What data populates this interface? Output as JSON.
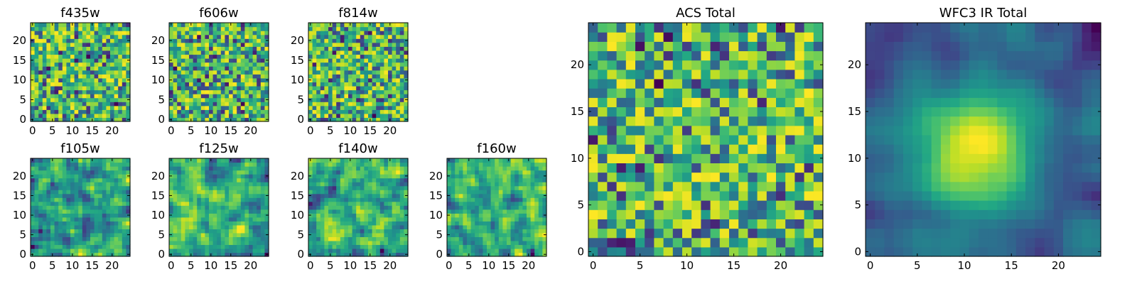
{
  "chart_data": [
    {
      "type": "heatmap",
      "title": "f435w",
      "colormap": "viridis",
      "xlim": [
        0,
        24
      ],
      "ylim": [
        0,
        24
      ],
      "xticks": [
        0,
        5,
        10,
        15,
        20
      ],
      "yticks": [
        0,
        5,
        10,
        15,
        20
      ],
      "grid": false,
      "pattern": "noise",
      "seed": 11
    },
    {
      "type": "heatmap",
      "title": "f606w",
      "colormap": "viridis",
      "xlim": [
        0,
        24
      ],
      "ylim": [
        0,
        24
      ],
      "xticks": [
        0,
        5,
        10,
        15,
        20
      ],
      "yticks": [
        0,
        5,
        10,
        15,
        20
      ],
      "grid": false,
      "pattern": "noise",
      "seed": 23
    },
    {
      "type": "heatmap",
      "title": "f814w",
      "colormap": "viridis",
      "xlim": [
        0,
        24
      ],
      "ylim": [
        0,
        24
      ],
      "xticks": [
        0,
        5,
        10,
        15,
        20
      ],
      "yticks": [
        0,
        5,
        10,
        15,
        20
      ],
      "grid": false,
      "pattern": "noise",
      "seed": 37
    },
    {
      "type": "heatmap",
      "title": "f105w",
      "colormap": "viridis",
      "xlim": [
        0,
        24
      ],
      "ylim": [
        0,
        24
      ],
      "xticks": [
        0,
        5,
        10,
        15,
        20
      ],
      "yticks": [
        0,
        5,
        10,
        15,
        20
      ],
      "grid": false,
      "pattern": "smooth",
      "seed": 41
    },
    {
      "type": "heatmap",
      "title": "f125w",
      "colormap": "viridis",
      "xlim": [
        0,
        24
      ],
      "ylim": [
        0,
        24
      ],
      "xticks": [
        0,
        5,
        10,
        15,
        20
      ],
      "yticks": [
        0,
        5,
        10,
        15,
        20
      ],
      "grid": false,
      "pattern": "smooth",
      "seed": 53
    },
    {
      "type": "heatmap",
      "title": "f140w",
      "colormap": "viridis",
      "xlim": [
        0,
        24
      ],
      "ylim": [
        0,
        24
      ],
      "xticks": [
        0,
        5,
        10,
        15,
        20
      ],
      "yticks": [
        0,
        5,
        10,
        15,
        20
      ],
      "grid": false,
      "pattern": "smooth",
      "seed": 67
    },
    {
      "type": "heatmap",
      "title": "f160w",
      "colormap": "viridis",
      "xlim": [
        0,
        24
      ],
      "ylim": [
        0,
        24
      ],
      "xticks": [
        0,
        5,
        10,
        15,
        20
      ],
      "yticks": [
        0,
        5,
        10,
        15,
        20
      ],
      "grid": false,
      "pattern": "smooth",
      "seed": 79
    },
    {
      "type": "heatmap",
      "title": "ACS Total",
      "colormap": "viridis",
      "xlim": [
        0,
        24
      ],
      "ylim": [
        0,
        24
      ],
      "xticks": [
        0,
        5,
        10,
        15,
        20
      ],
      "yticks": [
        0,
        5,
        10,
        15,
        20
      ],
      "grid": false,
      "pattern": "noise",
      "seed": 97
    },
    {
      "type": "heatmap",
      "title": "WFC3 IR Total",
      "colormap": "viridis",
      "xlim": [
        0,
        24
      ],
      "ylim": [
        0,
        24
      ],
      "xticks": [
        0,
        5,
        10,
        15,
        20
      ],
      "yticks": [
        0,
        5,
        10,
        15,
        20
      ],
      "grid": false,
      "pattern": "blob",
      "seed": 103
    }
  ]
}
